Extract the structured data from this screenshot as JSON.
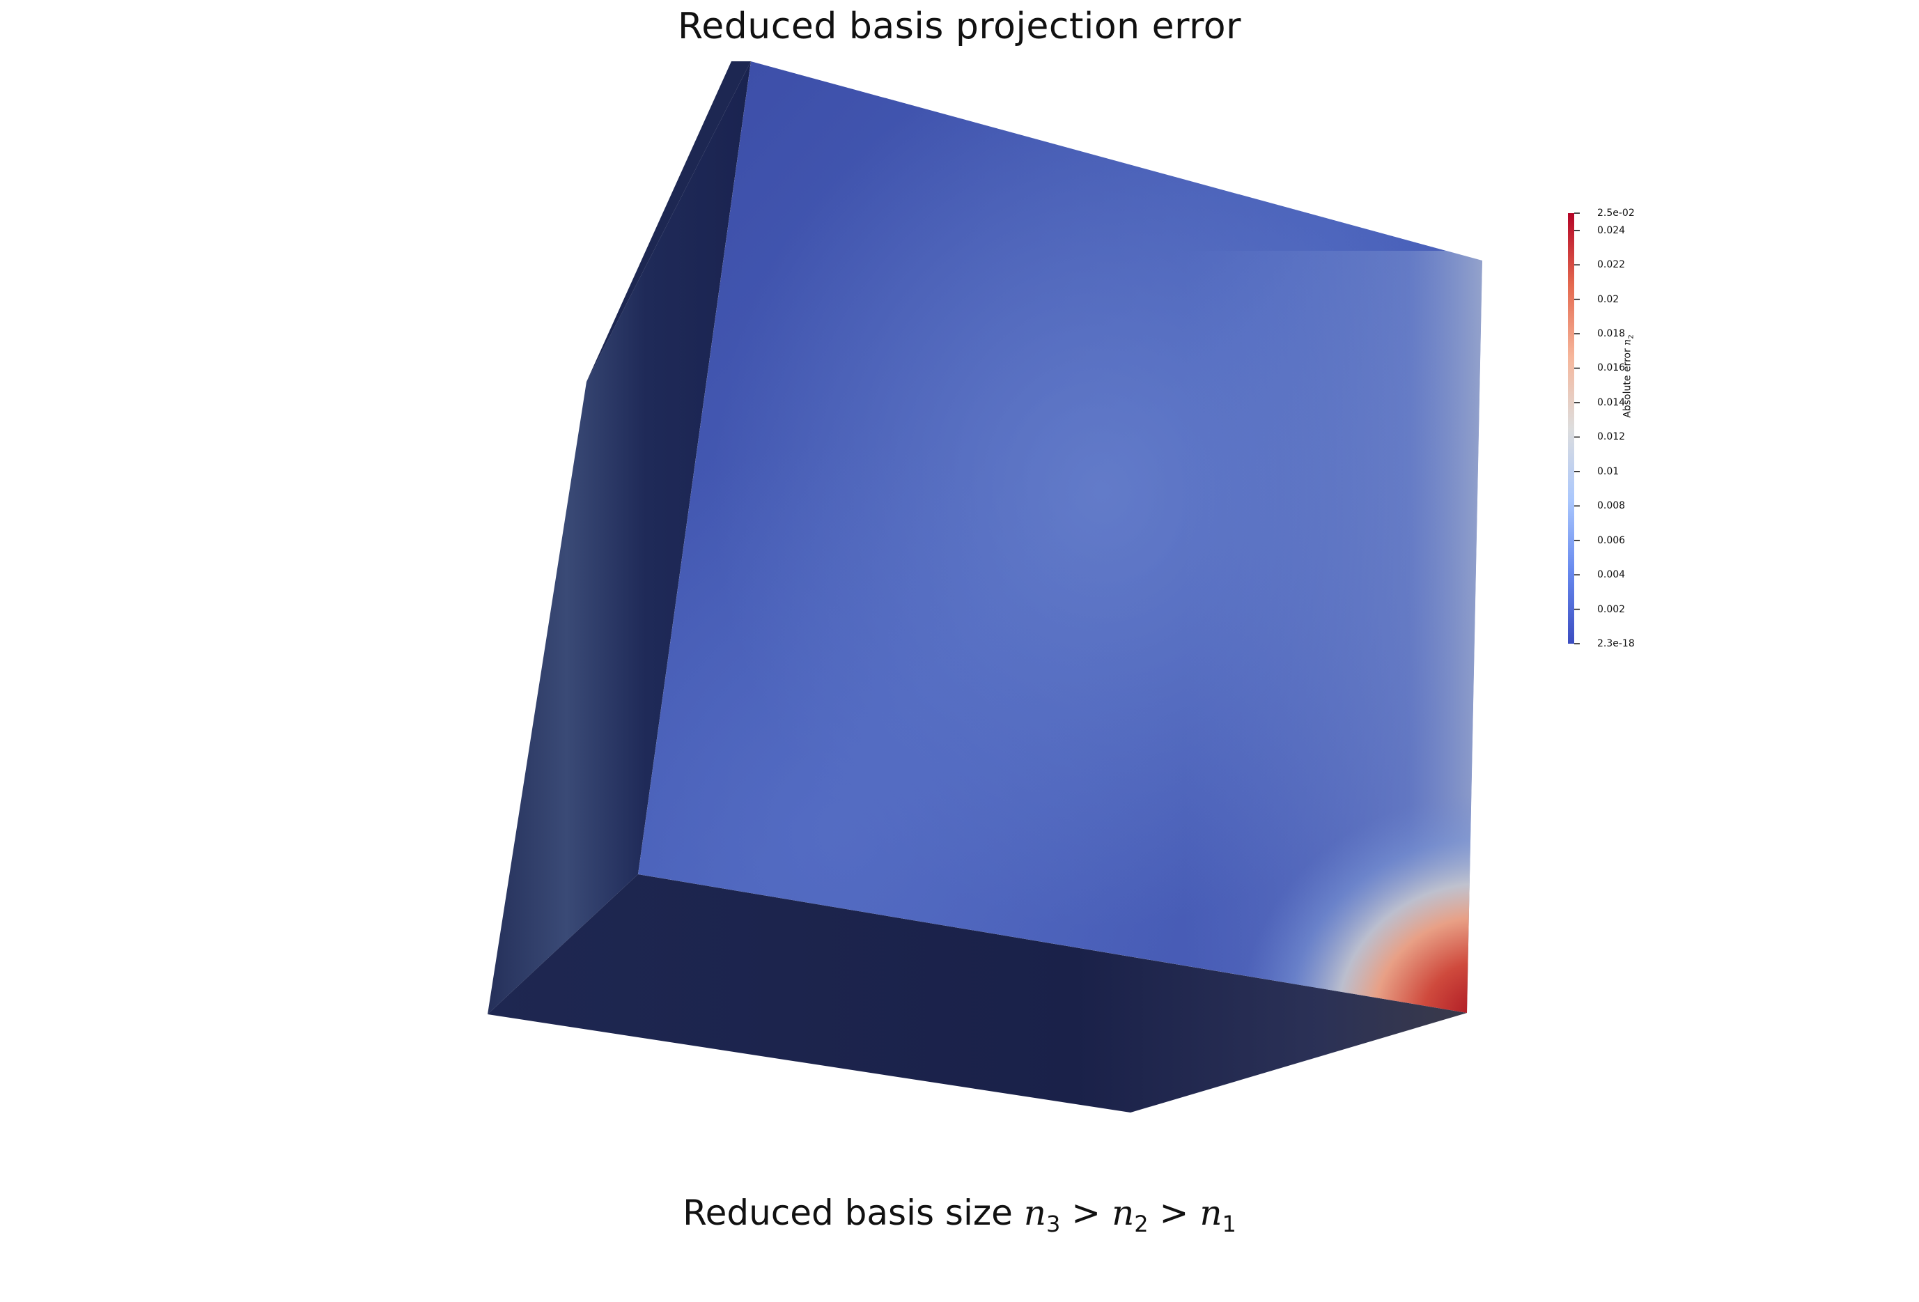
{
  "title": "Reduced basis projection error",
  "colorbar": {
    "title_text": "Absolute error ",
    "title_var": "n",
    "title_sub": "2",
    "range": [
      2.3e-18,
      0.025
    ],
    "ticks": [
      {
        "label": "2.5e-02",
        "value": 0.025
      },
      {
        "label": "0.024",
        "value": 0.024
      },
      {
        "label": "0.022",
        "value": 0.022
      },
      {
        "label": "0.02",
        "value": 0.02
      },
      {
        "label": "0.018",
        "value": 0.018
      },
      {
        "label": "0.016",
        "value": 0.016
      },
      {
        "label": "0.014",
        "value": 0.014
      },
      {
        "label": "0.012",
        "value": 0.012
      },
      {
        "label": "0.01",
        "value": 0.01
      },
      {
        "label": "0.008",
        "value": 0.008
      },
      {
        "label": "0.006",
        "value": 0.006
      },
      {
        "label": "0.004",
        "value": 0.004
      },
      {
        "label": "0.002",
        "value": 0.002
      },
      {
        "label": "2.3e-18",
        "value": 0
      }
    ],
    "colors": [
      "#3b4cc0",
      "#6688ee",
      "#aac7fd",
      "#dddddd",
      "#f6b69b",
      "#e4694f",
      "#b40426"
    ]
  },
  "caption": {
    "prefix": "Reduced basis size ",
    "n": "n",
    "sub3": "3",
    "sub2": "2",
    "sub1": "1",
    "gt": ">"
  }
}
